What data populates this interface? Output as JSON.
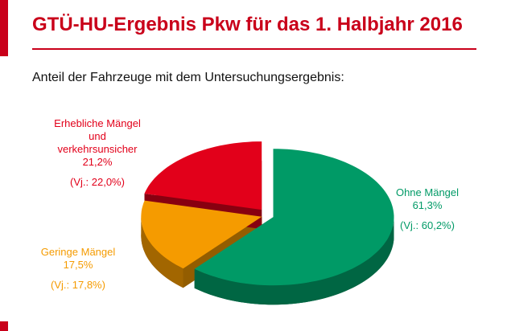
{
  "page": {
    "title": "GTÜ-HU-Ergebnis Pkw für das 1. Halbjahr 2016",
    "subtitle": "Anteil der Fahrzeuge mit dem Untersuchungsergebnis:",
    "accent_color": "#c9001a",
    "background_color": "#ffffff"
  },
  "chart_data": {
    "type": "pie",
    "style": "3d-exploded",
    "title": "Anteil der Fahrzeuge mit dem Untersuchungsergebnis",
    "start_angle_deg": 0,
    "direction": "clockwise",
    "unit": "%",
    "legend_position": "around",
    "slices": [
      {
        "label": "Ohne Mängel",
        "label_lines": [
          "Ohne Mängel"
        ],
        "value": 61.3,
        "pct_label": "61,3%",
        "vj_label": "(Vj.: 60,2%)",
        "prev_year_value": 60.2,
        "color": "#009a66"
      },
      {
        "label": "Geringe Mängel",
        "label_lines": [
          "Geringe Mängel"
        ],
        "value": 17.5,
        "pct_label": "17,5%",
        "vj_label": "(Vj.: 17,8%)",
        "prev_year_value": 17.8,
        "color": "#f59b00"
      },
      {
        "label": "Erhebliche Mängel und verkehrsunsicher",
        "label_lines": [
          "Erhebliche Mängel",
          "und",
          "verkehrsunsicher"
        ],
        "value": 21.2,
        "pct_label": "21,2%",
        "vj_label": "(Vj.: 22,0%)",
        "prev_year_value": 22.0,
        "color": "#e2001a"
      }
    ]
  }
}
